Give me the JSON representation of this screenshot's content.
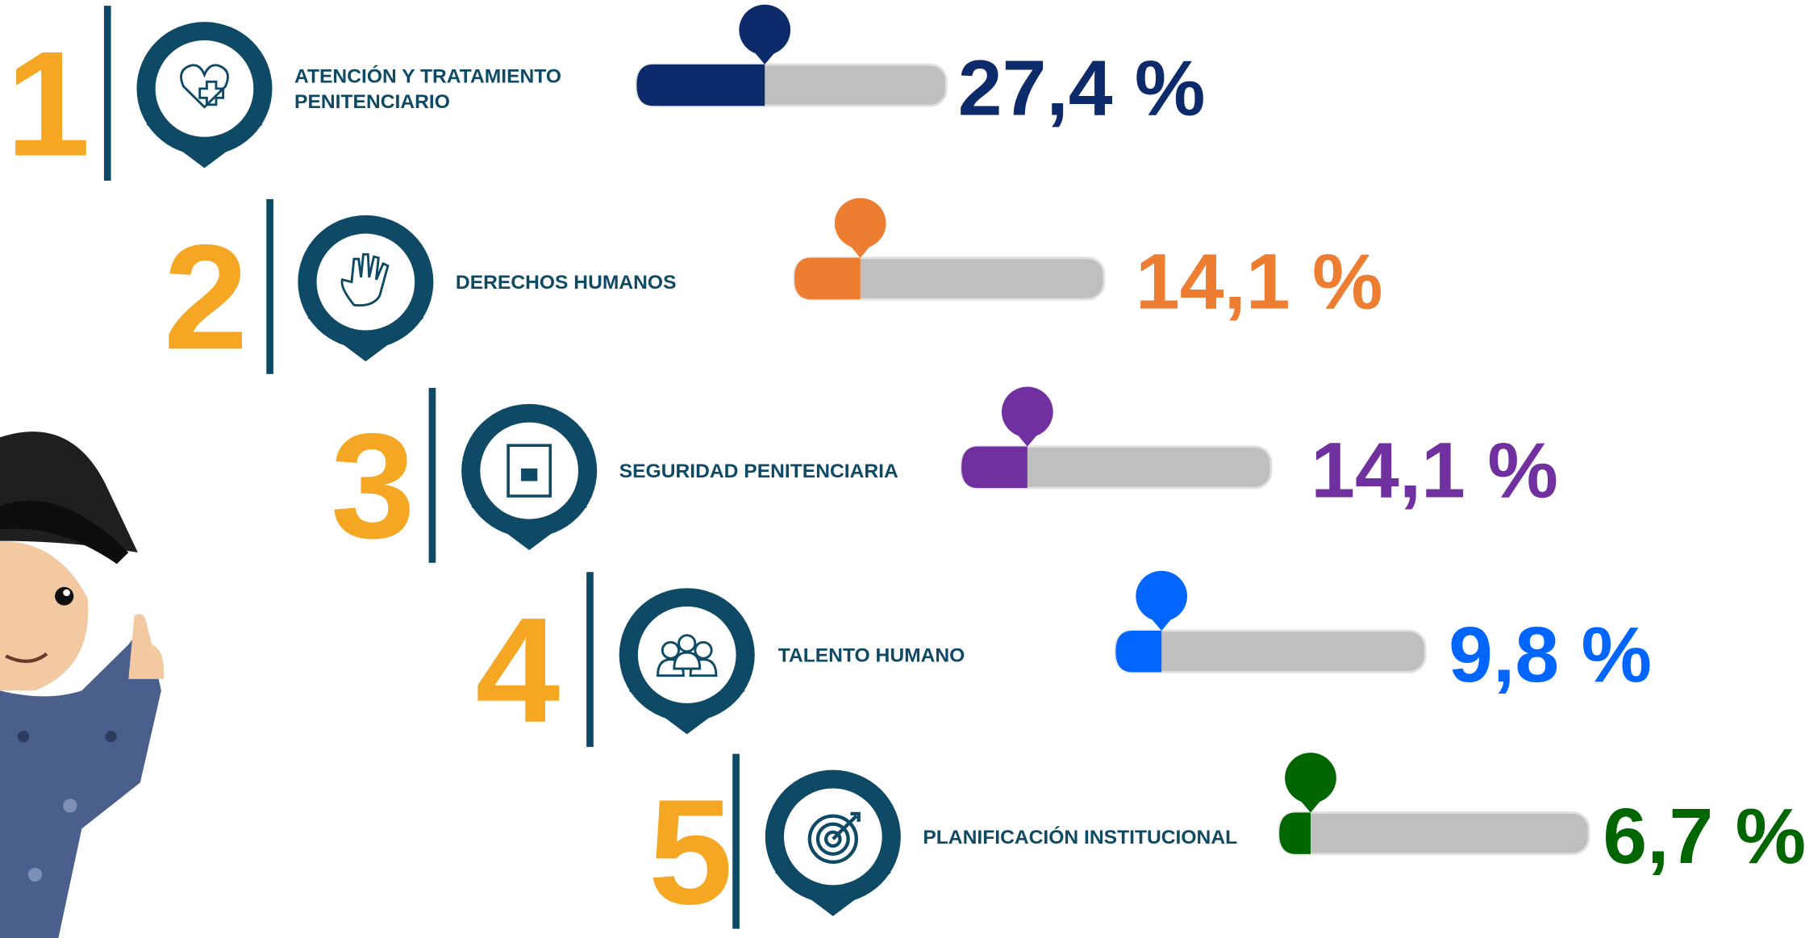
{
  "items": [
    {
      "rank": "1",
      "label": [
        "ATENCIÓN Y TRATAMIENTO",
        "PENITENCIARIO"
      ],
      "value": 27.4,
      "value_label": "27,4 %",
      "color": "#0d2a6b"
    },
    {
      "rank": "2",
      "label": [
        "DERECHOS HUMANOS"
      ],
      "value": 14.1,
      "value_label": "14,1 %",
      "color": "#ed7d31"
    },
    {
      "rank": "3",
      "label": [
        "SEGURIDAD PENITENCIARIA"
      ],
      "value": 14.1,
      "value_label": "14,1 %",
      "color": "#7030a0"
    },
    {
      "rank": "4",
      "label": [
        "TALENTO HUMANO"
      ],
      "value": 9.8,
      "value_label": "9,8 %",
      "color": "#0066ff"
    },
    {
      "rank": "5",
      "label": [
        "PLANIFICACIÓN INSTITUCIONAL"
      ],
      "value": 6.7,
      "value_label": "6,7 %",
      "color": "#006600"
    }
  ]
}
